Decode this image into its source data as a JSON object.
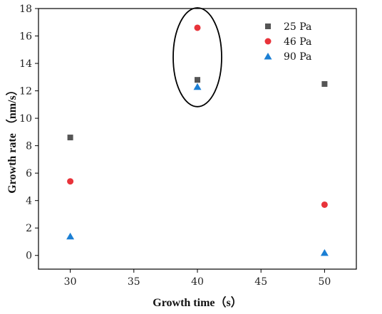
{
  "chart_data": {
    "type": "scatter",
    "title": "",
    "xlabel": "Growth time（s）",
    "ylabel": "Growth rate （nm/s）",
    "xlim": [
      27.5,
      52.5
    ],
    "ylim": [
      -1,
      18
    ],
    "x_ticks": [
      30,
      35,
      40,
      45,
      50
    ],
    "y_ticks": [
      0,
      2,
      4,
      6,
      8,
      10,
      12,
      14,
      16,
      18
    ],
    "grid": false,
    "legend_position": "top-right",
    "series": [
      {
        "name": "25 Pa",
        "marker": "square",
        "color": "#555555",
        "x": [
          30,
          40,
          50
        ],
        "y": [
          8.6,
          12.8,
          12.5
        ]
      },
      {
        "name": "46 Pa",
        "marker": "circle",
        "color": "#e8333a",
        "x": [
          30,
          40,
          50
        ],
        "y": [
          5.4,
          16.6,
          3.7
        ]
      },
      {
        "name": "90 Pa",
        "marker": "triangle",
        "color": "#1b7fd4",
        "x": [
          30,
          40,
          50
        ],
        "y": [
          1.4,
          12.3,
          0.2
        ]
      }
    ],
    "annotations": [
      {
        "type": "ellipse",
        "around_x": 40,
        "around_y": [
          12.3,
          16.6
        ]
      }
    ]
  }
}
